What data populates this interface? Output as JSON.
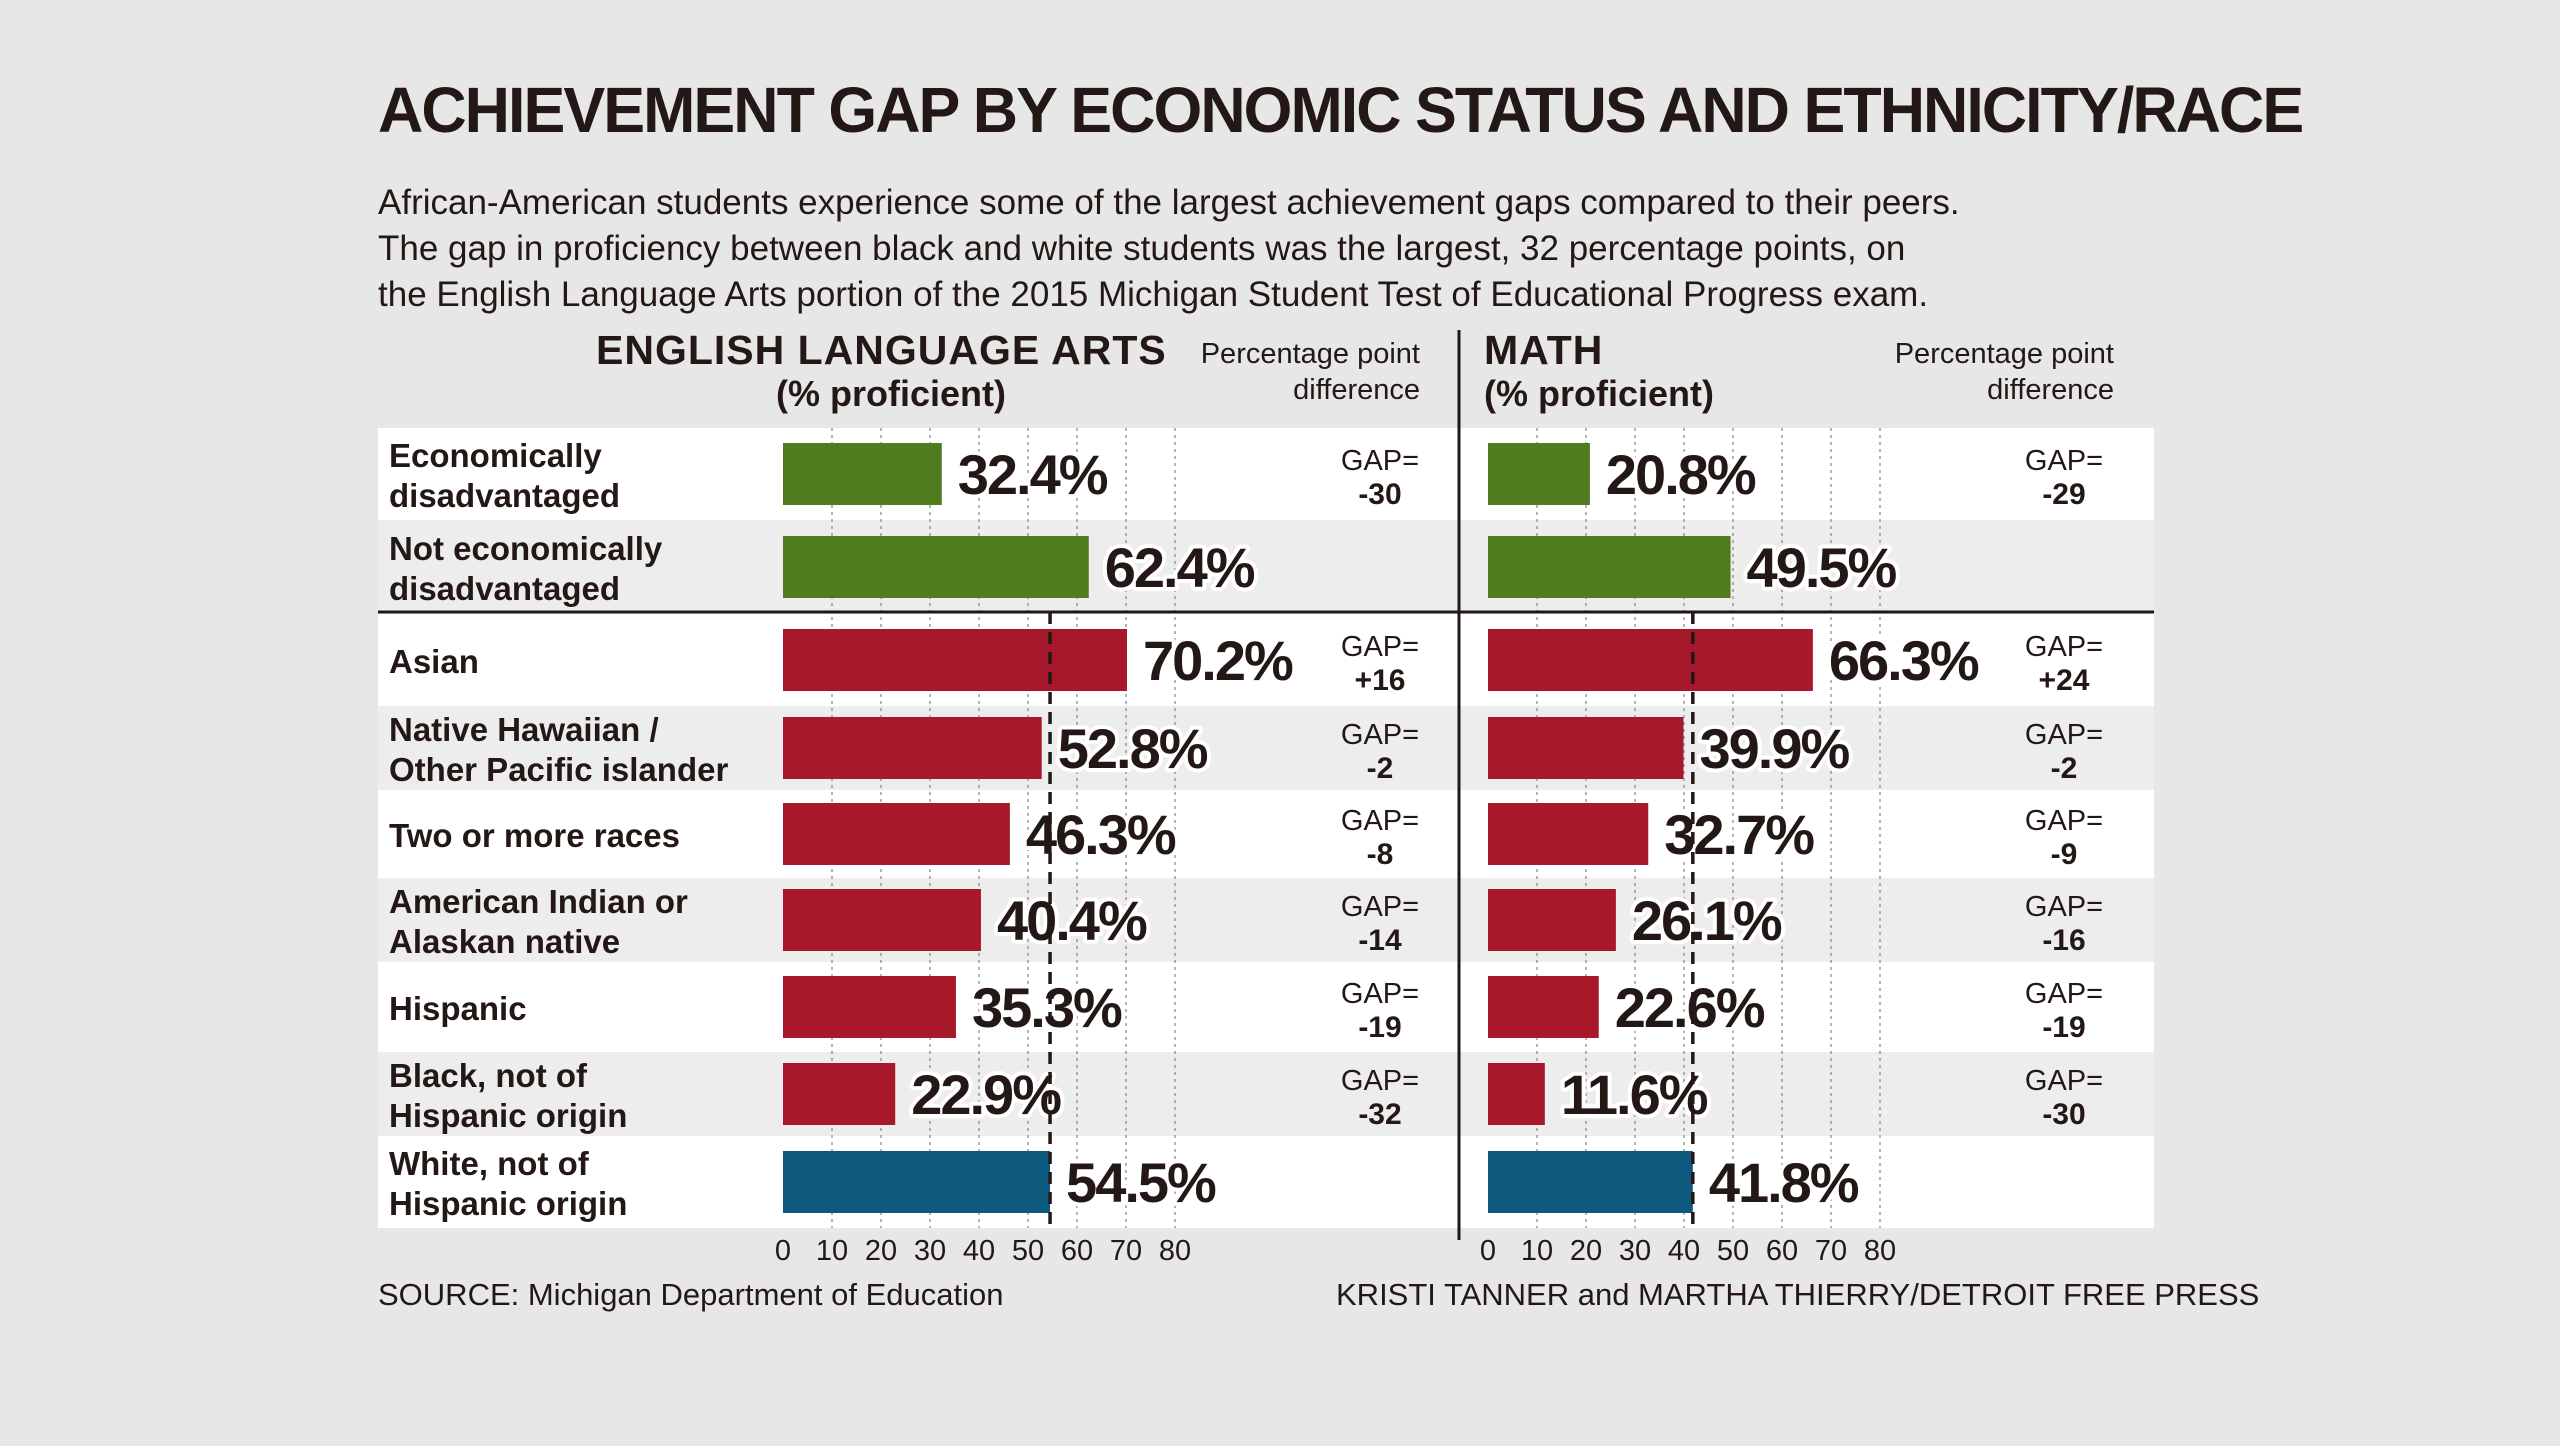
{
  "title": "ACHIEVEMENT GAP BY ECONOMIC STATUS AND ETHNICITY/RACE",
  "subtitle_lines": [
    "African-American students experience some of the largest achievement gaps compared to their peers.",
    "The gap in proficiency between black and white students was the largest, 32 percentage points, on",
    "the English Language Arts portion of the 2015 Michigan Student Test of Educational Progress exam."
  ],
  "panels": {
    "ela": {
      "heading": "ENGLISH LANGUAGE ARTS",
      "subheading": "(% proficient)"
    },
    "math": {
      "heading": "MATH",
      "subheading": "(% proficient)"
    }
  },
  "diff_heading_lines": [
    "Percentage point",
    "difference"
  ],
  "source": "SOURCE: Michigan Department of Education",
  "credit": "KRISTI TANNER and MARTHA THIERRY/DETROIT FREE PRESS",
  "colors": {
    "economic": "#4e7c1e",
    "race": "#a8182b",
    "white_reference": "#0e5a7f",
    "row_light": "#ffffff",
    "row_dark": "#ededed",
    "text": "#231815"
  },
  "chart_data": {
    "type": "bar",
    "orientation": "horizontal",
    "xlim": [
      0,
      80
    ],
    "x_ticks": [
      0,
      10,
      20,
      30,
      40,
      50,
      60,
      70,
      80
    ],
    "categories": [
      [
        "Economically",
        "disadvantaged"
      ],
      [
        "Not economically",
        "disadvantaged"
      ],
      [
        "Asian"
      ],
      [
        "Native Hawaiian /",
        "Other Pacific islander"
      ],
      [
        "Two or more races"
      ],
      [
        "American Indian or",
        "Alaskan native"
      ],
      [
        "Hispanic"
      ],
      [
        "Black, not of",
        "Hispanic origin"
      ],
      [
        "White, not of",
        "Hispanic origin"
      ]
    ],
    "groups": [
      "economic",
      "economic",
      "race",
      "race",
      "race",
      "race",
      "race",
      "race",
      "white_reference"
    ],
    "series": [
      {
        "name": "ENGLISH LANGUAGE ARTS",
        "values": [
          32.4,
          62.4,
          70.2,
          52.8,
          46.3,
          40.4,
          35.3,
          22.9,
          54.5
        ],
        "labels": [
          "32.4%",
          "62.4%",
          "70.2%",
          "52.8%",
          "46.3%",
          "40.4%",
          "35.3%",
          "22.9%",
          "54.5%"
        ],
        "gaps": [
          "-30",
          "",
          "+16",
          "-2",
          "-8",
          "-14",
          "-19",
          "-32",
          ""
        ],
        "reference_value": 54.5
      },
      {
        "name": "MATH",
        "values": [
          20.8,
          49.5,
          66.3,
          39.9,
          32.7,
          26.1,
          22.6,
          11.6,
          41.8
        ],
        "labels": [
          "20.8%",
          "49.5%",
          "66.3%",
          "39.9%",
          "32.7%",
          "26.1%",
          "22.6%",
          "11.6%",
          "41.8%"
        ],
        "gaps": [
          "-29",
          "",
          "+24",
          "-2",
          "-9",
          "-16",
          "-19",
          "-30",
          ""
        ],
        "reference_value": 41.8
      }
    ],
    "gap_prefix": "GAP="
  }
}
